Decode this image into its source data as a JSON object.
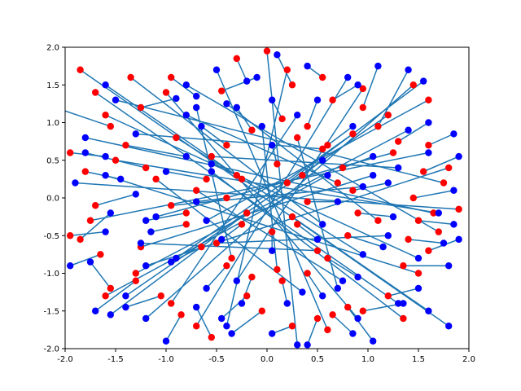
{
  "chart_data": {
    "type": "scatter",
    "title": "",
    "xlabel": "",
    "ylabel": "",
    "xlim": [
      -2.0,
      2.0
    ],
    "ylim": [
      -2.0,
      2.0
    ],
    "grid": false,
    "xticks": [
      "-2.0",
      "-1.5",
      "-1.0",
      "-0.5",
      "0.0",
      "0.5",
      "1.0",
      "1.5",
      "2.0"
    ],
    "yticks": [
      "-2.0",
      "-1.5",
      "-1.0",
      "-0.5",
      "0.0",
      "0.5",
      "1.0",
      "1.5",
      "2.0"
    ],
    "colors": {
      "start": "#ff0000",
      "end": "#0000ff",
      "segment": "#1f77b4",
      "axes": "#000000",
      "background": "#ffffff"
    },
    "segments": [
      [
        [
          -1.55,
          0.95
        ],
        [
          -2.1,
          1.2
        ]
      ],
      [
        [
          -1.2,
          0.4
        ],
        [
          -1.8,
          0.6
        ]
      ],
      [
        [
          -1.85,
          -0.55
        ],
        [
          -1.55,
          -0.2
        ]
      ],
      [
        [
          -1.7,
          -0.1
        ],
        [
          -1.3,
          0.05
        ]
      ],
      [
        [
          -1.4,
          0.7
        ],
        [
          -0.8,
          0.55
        ]
      ],
      [
        [
          -1.25,
          1.2
        ],
        [
          -0.9,
          1.32
        ]
      ],
      [
        [
          -0.95,
          1.6
        ],
        [
          -0.7,
          1.35
        ]
      ],
      [
        [
          -0.45,
          1.42
        ],
        [
          -0.1,
          1.6
        ]
      ],
      [
        [
          -0.3,
          1.85
        ],
        [
          -0.2,
          1.55
        ]
      ],
      [
        [
          0.25,
          1.5
        ],
        [
          0.1,
          1.9
        ]
      ],
      [
        [
          0.55,
          1.6
        ],
        [
          0.4,
          1.75
        ]
      ],
      [
        [
          0.65,
          1.3
        ],
        [
          0.9,
          1.5
        ]
      ],
      [
        [
          0.95,
          1.2
        ],
        [
          1.1,
          1.75
        ]
      ],
      [
        [
          1.1,
          0.95
        ],
        [
          1.4,
          1.7
        ]
      ],
      [
        [
          1.3,
          0.75
        ],
        [
          1.6,
          1.0
        ]
      ],
      [
        [
          1.6,
          0.7
        ],
        [
          1.85,
          0.85
        ]
      ],
      [
        [
          1.55,
          0.35
        ],
        [
          1.9,
          0.55
        ]
      ],
      [
        [
          1.45,
          0.0
        ],
        [
          1.85,
          0.1
        ]
      ],
      [
        [
          1.5,
          -0.3
        ],
        [
          1.85,
          -0.35
        ]
      ],
      [
        [
          1.4,
          -0.55
        ],
        [
          1.75,
          -0.6
        ]
      ],
      [
        [
          1.6,
          -0.7
        ],
        [
          1.9,
          -0.55
        ]
      ],
      [
        [
          1.35,
          -0.9
        ],
        [
          1.8,
          -0.9
        ]
      ],
      [
        [
          1.2,
          -1.3
        ],
        [
          1.5,
          -1.2
        ]
      ],
      [
        [
          0.95,
          -1.5
        ],
        [
          1.35,
          -1.4
        ]
      ],
      [
        [
          0.8,
          -1.45
        ],
        [
          1.05,
          -1.9
        ]
      ],
      [
        [
          0.65,
          -1.55
        ],
        [
          0.85,
          -1.8
        ]
      ],
      [
        [
          0.5,
          -1.6
        ],
        [
          0.4,
          -1.95
        ]
      ],
      [
        [
          0.25,
          -1.7
        ],
        [
          0.05,
          -1.8
        ]
      ],
      [
        [
          -0.05,
          -1.5
        ],
        [
          -0.35,
          -1.8
        ]
      ],
      [
        [
          -0.2,
          -1.3
        ],
        [
          -0.45,
          -1.6
        ]
      ],
      [
        [
          -0.55,
          -1.85
        ],
        [
          -0.7,
          -1.45
        ]
      ],
      [
        [
          -0.85,
          -1.55
        ],
        [
          -1.0,
          -1.9
        ]
      ],
      [
        [
          -1.05,
          -1.3
        ],
        [
          -1.4,
          -1.45
        ]
      ],
      [
        [
          -1.3,
          -1.1
        ],
        [
          -1.7,
          -1.5
        ]
      ],
      [
        [
          -1.55,
          -1.2
        ],
        [
          -1.75,
          -0.85
        ]
      ],
      [
        [
          -1.65,
          -0.75
        ],
        [
          -1.95,
          -0.9
        ]
      ],
      [
        [
          -1.95,
          -0.5
        ],
        [
          -1.6,
          -0.45
        ]
      ],
      [
        [
          -1.95,
          0.6
        ],
        [
          -1.6,
          0.55
        ]
      ],
      [
        [
          -1.8,
          0.35
        ],
        [
          -1.45,
          0.25
        ]
      ],
      [
        [
          -0.8,
          -0.2
        ],
        [
          -1.2,
          -0.3
        ]
      ],
      [
        [
          -0.6,
          0.25
        ],
        [
          -1.0,
          0.35
        ]
      ],
      [
        [
          -0.4,
          0.7
        ],
        [
          -0.65,
          0.95
        ]
      ],
      [
        [
          -0.15,
          0.9
        ],
        [
          -0.3,
          1.2
        ]
      ],
      [
        [
          0.15,
          1.05
        ],
        [
          0.05,
          1.3
        ]
      ],
      [
        [
          0.4,
          0.95
        ],
        [
          0.5,
          1.3
        ]
      ],
      [
        [
          0.6,
          0.7
        ],
        [
          0.85,
          0.95
        ]
      ],
      [
        [
          0.75,
          0.4
        ],
        [
          1.05,
          0.55
        ]
      ],
      [
        [
          0.85,
          0.1
        ],
        [
          1.2,
          0.2
        ]
      ],
      [
        [
          0.9,
          -0.2
        ],
        [
          1.25,
          -0.25
        ]
      ],
      [
        [
          0.8,
          -0.5
        ],
        [
          1.15,
          -0.65
        ]
      ],
      [
        [
          0.6,
          -0.8
        ],
        [
          0.9,
          -1.05
        ]
      ],
      [
        [
          0.4,
          -1.0
        ],
        [
          0.55,
          -1.3
        ]
      ],
      [
        [
          0.15,
          -1.1
        ],
        [
          0.2,
          -1.4
        ]
      ],
      [
        [
          -0.15,
          -1.05
        ],
        [
          -0.25,
          -1.4
        ]
      ],
      [
        [
          -0.4,
          -0.9
        ],
        [
          -0.6,
          -1.2
        ]
      ],
      [
        [
          -0.65,
          -0.65
        ],
        [
          -0.95,
          -0.85
        ]
      ],
      [
        [
          -0.8,
          -0.35
        ],
        [
          -1.15,
          -0.45
        ]
      ],
      [
        [
          -0.3,
          0.3
        ],
        [
          -0.55,
          0.45
        ]
      ],
      [
        [
          0.1,
          0.45
        ],
        [
          0.05,
          0.7
        ]
      ],
      [
        [
          0.35,
          0.3
        ],
        [
          0.55,
          0.5
        ]
      ],
      [
        [
          0.4,
          -0.05
        ],
        [
          0.7,
          -0.05
        ]
      ],
      [
        [
          0.3,
          -0.35
        ],
        [
          0.5,
          -0.55
        ]
      ],
      [
        [
          0.05,
          -0.45
        ],
        [
          0.05,
          -0.7
        ]
      ],
      [
        [
          -0.25,
          -0.35
        ],
        [
          -0.45,
          -0.55
        ]
      ],
      [
        [
          -0.4,
          0.0
        ],
        [
          -0.7,
          -0.05
        ]
      ],
      [
        [
          1.75,
          0.2
        ],
        [
          -1.5,
          1.3
        ]
      ],
      [
        [
          1.65,
          -0.2
        ],
        [
          -1.8,
          0.8
        ]
      ],
      [
        [
          1.8,
          0.4
        ],
        [
          -1.2,
          -0.9
        ]
      ],
      [
        [
          1.5,
          -1.0
        ],
        [
          -1.6,
          0.3
        ]
      ],
      [
        [
          1.7,
          -0.45
        ],
        [
          -0.8,
          1.5
        ]
      ],
      [
        [
          1.2,
          1.1
        ],
        [
          -1.4,
          -1.3
        ]
      ],
      [
        [
          -1.6,
          1.1
        ],
        [
          1.5,
          -0.8
        ]
      ],
      [
        [
          -1.75,
          -0.3
        ],
        [
          1.6,
          0.6
        ]
      ],
      [
        [
          -1.3,
          -1.0
        ],
        [
          1.4,
          0.9
        ]
      ],
      [
        [
          -1.5,
          0.5
        ],
        [
          1.7,
          -0.2
        ]
      ],
      [
        [
          -1.0,
          1.4
        ],
        [
          0.9,
          -1.6
        ]
      ],
      [
        [
          -0.7,
          -1.7
        ],
        [
          0.8,
          1.6
        ]
      ],
      [
        [
          0.2,
          1.7
        ],
        [
          -0.4,
          -1.7
        ]
      ],
      [
        [
          0.6,
          -1.75
        ],
        [
          -0.5,
          1.7
        ]
      ],
      [
        [
          1.45,
          1.5
        ],
        [
          -1.2,
          -1.6
        ]
      ],
      [
        [
          -1.7,
          1.4
        ],
        [
          1.3,
          -1.4
        ]
      ],
      [
        [
          1.9,
          -0.15
        ],
        [
          -1.9,
          0.2
        ]
      ],
      [
        [
          -1.85,
          1.7
        ],
        [
          1.8,
          -1.7
        ]
      ],
      [
        [
          0.0,
          1.95
        ],
        [
          0.3,
          -1.95
        ]
      ],
      [
        [
          -0.9,
          0.8
        ],
        [
          0.95,
          -0.75
        ]
      ],
      [
        [
          0.85,
          0.85
        ],
        [
          -0.9,
          -0.8
        ]
      ],
      [
        [
          -0.95,
          -0.1
        ],
        [
          0.95,
          0.15
        ]
      ],
      [
        [
          0.1,
          -0.95
        ],
        [
          -0.05,
          0.95
        ]
      ],
      [
        [
          -0.55,
          0.55
        ],
        [
          1.3,
          0.4
        ]
      ],
      [
        [
          0.55,
          0.65
        ],
        [
          -1.3,
          0.85
        ]
      ],
      [
        [
          -0.5,
          -0.6
        ],
        [
          1.2,
          -0.5
        ]
      ],
      [
        [
          0.5,
          -0.7
        ],
        [
          -1.25,
          -0.6
        ]
      ],
      [
        [
          0.7,
          0.2
        ],
        [
          -0.8,
          1.1
        ]
      ],
      [
        [
          -0.7,
          0.1
        ],
        [
          0.75,
          -1.1
        ]
      ],
      [
        [
          1.1,
          -0.3
        ],
        [
          -0.4,
          1.25
        ]
      ],
      [
        [
          -1.1,
          0.25
        ],
        [
          0.35,
          -1.25
        ]
      ],
      [
        [
          0.3,
          0.8
        ],
        [
          0.7,
          -1.2
        ]
      ],
      [
        [
          -0.35,
          -0.8
        ],
        [
          -0.7,
          1.2
        ]
      ],
      [
        [
          1.25,
          0.6
        ],
        [
          -1.1,
          -0.25
        ]
      ],
      [
        [
          -1.25,
          -0.65
        ],
        [
          1.05,
          0.3
        ]
      ],
      [
        [
          0.95,
          1.45
        ],
        [
          -0.3,
          -1.1
        ]
      ],
      [
        [
          -0.95,
          -1.4
        ],
        [
          0.3,
          1.1
        ]
      ],
      [
        [
          1.6,
          1.3
        ],
        [
          -0.6,
          -0.3
        ]
      ],
      [
        [
          -1.6,
          -1.3
        ],
        [
          0.6,
          0.3
        ]
      ],
      [
        [
          1.35,
          -1.6
        ],
        [
          -0.55,
          0.35
        ]
      ],
      [
        [
          -1.35,
          1.6
        ],
        [
          0.55,
          -0.35
        ]
      ],
      [
        [
          0.2,
          0.2
        ],
        [
          1.55,
          1.55
        ]
      ],
      [
        [
          -0.2,
          -0.2
        ],
        [
          -1.55,
          -1.55
        ]
      ],
      [
        [
          0.25,
          -0.25
        ],
        [
          1.6,
          -1.5
        ]
      ],
      [
        [
          -0.25,
          0.25
        ],
        [
          -1.6,
          1.5
        ]
      ]
    ]
  }
}
